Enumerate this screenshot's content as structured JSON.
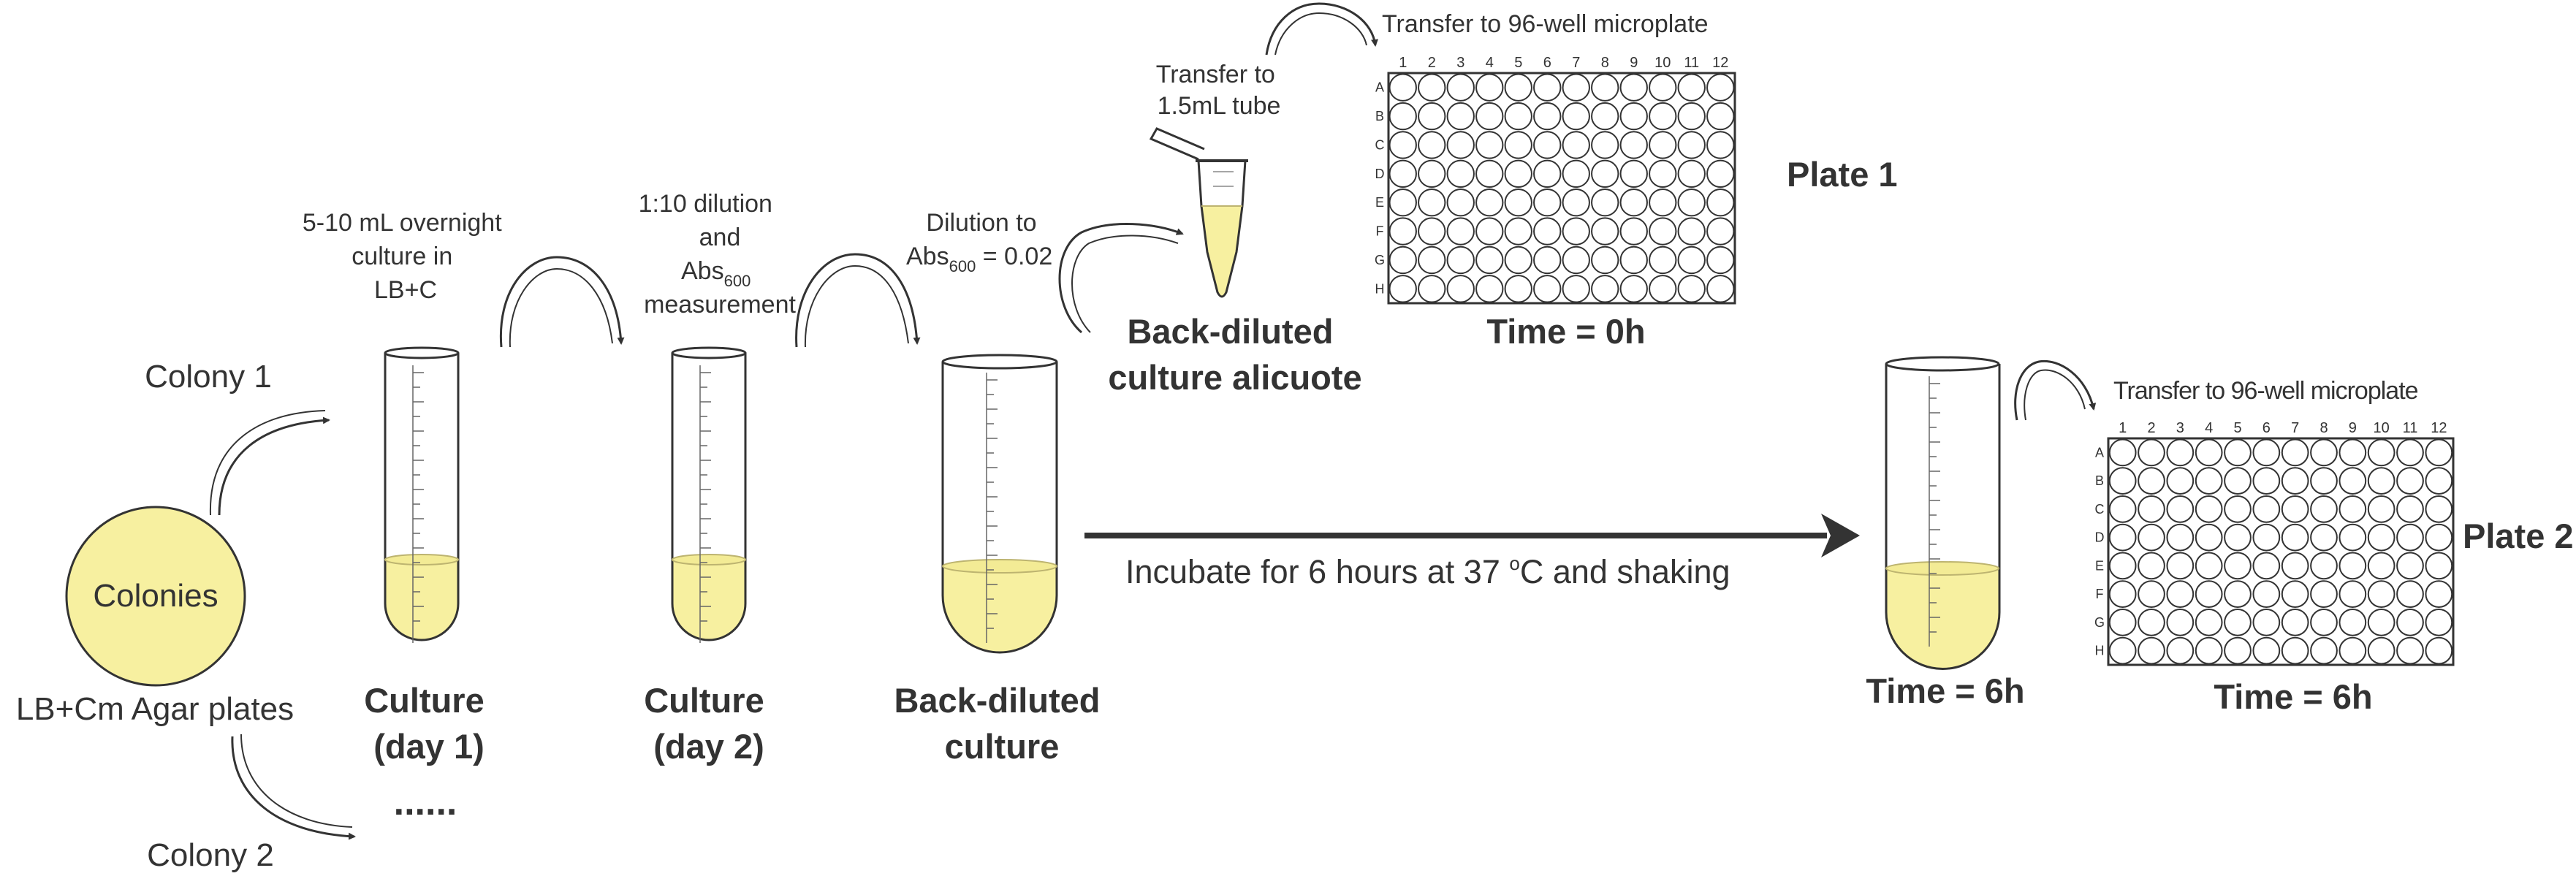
{
  "colors": {
    "liquid": "#f7f0a0",
    "liquid_line": "#d8d080",
    "agar_plate": "#f7f0a0",
    "outline": "#333333",
    "arrow": "#333333",
    "text": "#333333"
  },
  "colonies": {
    "plate_label": "Colonies",
    "plates_caption": "LB+Cm Agar plates",
    "colony_1": "Colony 1",
    "colony_2": "Colony 2",
    "ellipsis": "......"
  },
  "step1": {
    "label_lines": [
      "5-10 mL overnight",
      "culture in",
      "LB+C"
    ],
    "caption_lines": [
      "Culture",
      "(day 1)"
    ]
  },
  "step2": {
    "label_lines": [
      "1:10 dilution",
      "and"
    ],
    "abs_main": "Abs",
    "abs_sub": "600",
    "label_last": "measurement",
    "caption_lines": [
      "Culture",
      "(day 2)"
    ]
  },
  "step3": {
    "label_line1": "Dilution to",
    "abs_main": "Abs",
    "abs_sub": "600",
    "abs_value": " = 0.02",
    "caption_lines": [
      "Back-diluted",
      "culture"
    ]
  },
  "aliquot": {
    "label_lines": [
      "Transfer to",
      "1.5mL tube"
    ],
    "caption_lines": [
      "Back-diluted",
      "culture alicuote"
    ]
  },
  "plate1": {
    "transfer_label": "Transfer to  96-well microplate",
    "name": "Plate 1",
    "time": "Time = 0h"
  },
  "incubation": {
    "text_before": "Incubate for 6 hours at 37 ",
    "degree": "o",
    "text_after": "C and shaking"
  },
  "tube_6h": {
    "caption": "Time = 6h"
  },
  "plate2": {
    "transfer_label": "Transfer to 96-well microplate",
    "name": "Plate 2",
    "time": "Time = 6h"
  },
  "microplate": {
    "columns": [
      "1",
      "2",
      "3",
      "4",
      "5",
      "6",
      "7",
      "8",
      "9",
      "10",
      "11",
      "12"
    ],
    "rows": [
      "A",
      "B",
      "C",
      "D",
      "E",
      "F",
      "G",
      "H"
    ]
  }
}
